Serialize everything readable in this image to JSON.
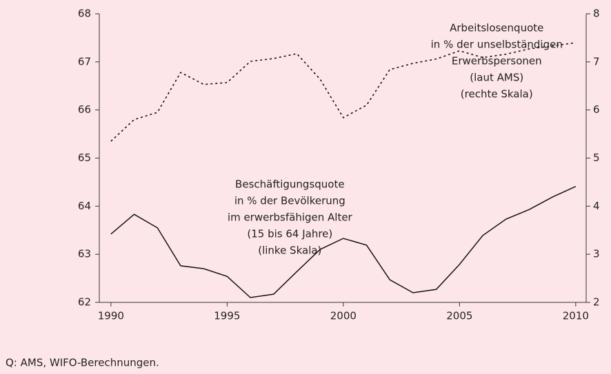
{
  "chart_data": {
    "type": "line",
    "x": [
      1990,
      1991,
      1992,
      1993,
      1994,
      1995,
      1996,
      1997,
      1998,
      1999,
      2000,
      2001,
      2002,
      2003,
      2004,
      2005,
      2006,
      2007,
      2008,
      2009,
      2010
    ],
    "series": [
      {
        "name": "Beschäftigungsquote",
        "color": "#111111",
        "dash": "solid",
        "values": [
          63.42,
          63.83,
          63.55,
          62.76,
          62.7,
          62.54,
          62.1,
          62.17,
          62.64,
          63.1,
          63.33,
          63.19,
          62.47,
          62.2,
          62.27,
          62.79,
          63.39,
          63.73,
          63.93,
          64.19,
          64.41
        ]
      },
      {
        "name": "Arbeitslosenquote",
        "color": "#111111",
        "dash": "dotted",
        "axis": "y2",
        "values": [
          5.35,
          5.8,
          5.95,
          6.78,
          6.53,
          6.57,
          7.01,
          7.07,
          7.17,
          6.64,
          5.84,
          6.1,
          6.84,
          6.97,
          7.06,
          7.23,
          7.09,
          7.16,
          7.27,
          7.33,
          7.4
        ]
      }
    ],
    "xlim": [
      1989.5,
      2010.45
    ],
    "xticks": [
      1990,
      1995,
      2000,
      2005,
      2010
    ],
    "ylim": [
      62,
      68
    ],
    "yticks": [
      62,
      63,
      64,
      65,
      66,
      67,
      68
    ],
    "y2lim": [
      2,
      8
    ],
    "y2ticks": [
      2,
      3,
      4,
      5,
      6,
      7,
      8
    ],
    "annotations": [
      {
        "lines": [
          "Beschäftigungsquote",
          "in % der Bevölkerung",
          "im erwerbsfähigen Alter",
          "(15 bis 64 Jahre)",
          "(linke Skala)"
        ],
        "x": 1997.7,
        "y": 64.45
      },
      {
        "lines": [
          "Arbeitslosenquote",
          "in % der unselbständigen",
          "Erwerbspersonen",
          "(laut AMS)",
          "(rechte Skala)"
        ],
        "x": 2006.6,
        "y": 67.7
      }
    ],
    "source": "Q: AMS, WIFO-Berechnungen."
  }
}
